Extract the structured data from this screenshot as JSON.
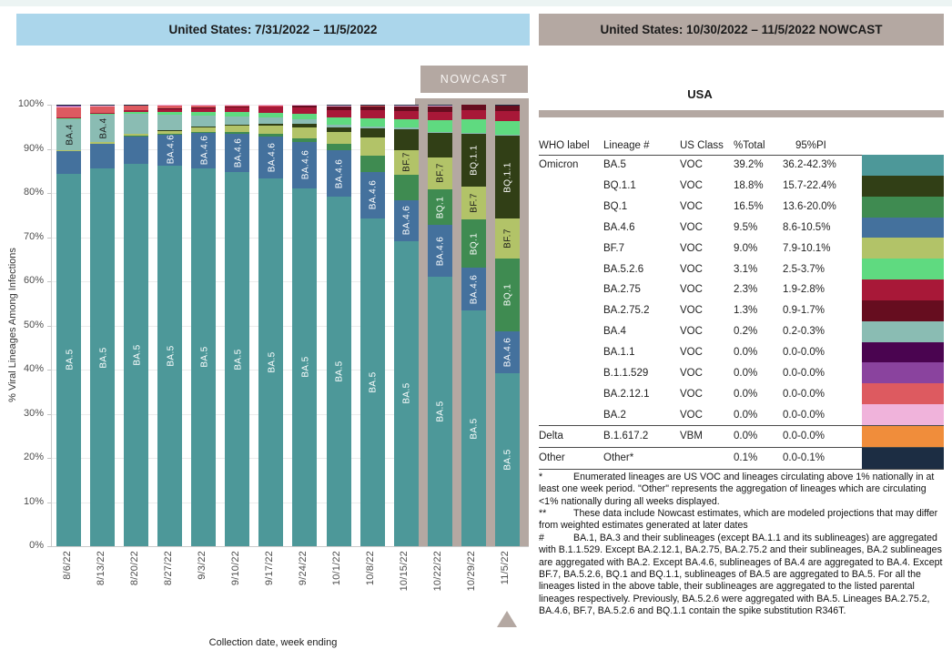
{
  "page": {
    "top_strip_color": "#ECF4F3",
    "accent_blue": "#ABD6EB",
    "accent_taupe": "#B4A8A2"
  },
  "left_panel": {
    "title": "United States: 7/31/2022 – 11/5/2022"
  },
  "right_panel": {
    "title": "United States: 10/30/2022 – 11/5/2022 NOWCAST",
    "table_title": "USA"
  },
  "chart_data": {
    "type": "bar",
    "stacked": true,
    "ylabel": "% Viral Lineages Among Infections",
    "xlabel": "Collection date, week ending",
    "ylim": [
      0,
      100
    ],
    "ytick_percents": [
      0,
      10,
      20,
      30,
      40,
      50,
      60,
      70,
      80,
      90,
      100
    ],
    "grid": true,
    "nowcast_label": "NOWCAST",
    "nowcast_weeks": [
      "10/22/22",
      "10/29/22",
      "11/5/22"
    ],
    "selected_week": "11/5/22",
    "categories": [
      "8/6/22",
      "8/13/22",
      "8/20/22",
      "8/27/22",
      "9/3/22",
      "9/10/22",
      "9/17/22",
      "9/24/22",
      "10/1/22",
      "10/8/22",
      "10/15/22",
      "10/22/22",
      "10/29/22",
      "11/5/22"
    ],
    "stack_order_bottom_to_top": [
      "BA.5",
      "BA.4.6",
      "BQ.1",
      "BF.7",
      "BQ.1.1",
      "BA.4",
      "BA.5.2.6",
      "BA.2.75",
      "BA.2.75.2",
      "BA.2.12.1",
      "BA.2",
      "B.1.1.529",
      "BA.1.1",
      "B.1.617.2",
      "Other"
    ],
    "series": [
      {
        "name": "BA.5",
        "color": "#4D9899",
        "label_color": "#ffffff",
        "label_min": 5,
        "values": [
          84.4,
          85.5,
          86.5,
          86.2,
          85.6,
          84.7,
          83.2,
          81.1,
          79.2,
          74.3,
          69.1,
          61.1,
          53.4,
          39.2
        ]
      },
      {
        "name": "BA.4.6",
        "color": "#44719D",
        "label_color": "#ffffff",
        "label_min": 7,
        "values": [
          5.0,
          5.6,
          6.3,
          7.2,
          8.0,
          8.8,
          9.6,
          10.4,
          10.4,
          10.5,
          9.3,
          11.6,
          9.6,
          9.5
        ]
      },
      {
        "name": "BQ.1",
        "color": "#3F8B51",
        "label_color": "#ffffff",
        "label_min": 8,
        "values": [
          0,
          0,
          0.1,
          0.1,
          0.2,
          0.3,
          0.5,
          0.8,
          1.6,
          3.6,
          5.8,
          8.2,
          11.0,
          16.5
        ]
      },
      {
        "name": "BF.7",
        "color": "#B2C368",
        "label_color": "#1a1a1a",
        "label_min": 5.4,
        "values": [
          0.3,
          0.4,
          0.5,
          0.7,
          1.0,
          1.4,
          1.9,
          2.5,
          2.6,
          4.1,
          5.5,
          7.2,
          7.5,
          9.0
        ]
      },
      {
        "name": "BQ.1.1",
        "color": "#313F16",
        "label_color": "#ffffff",
        "label_min": 11.5,
        "values": [
          0,
          0,
          0,
          0.1,
          0.2,
          0.3,
          0.5,
          0.8,
          1.0,
          2.1,
          4.8,
          5.5,
          12.0,
          18.8
        ]
      },
      {
        "name": "BA.4",
        "color": "#8ABCB3",
        "label_color": "#1a1a1a",
        "label_min": 5,
        "values": [
          7.1,
          6.2,
          4.6,
          3.5,
          2.6,
          1.9,
          1.4,
          1.0,
          0.7,
          0.5,
          0.4,
          0.3,
          0.2,
          0.2
        ]
      },
      {
        "name": "BA.5.2.6",
        "color": "#5FDA80",
        "label_color": "#1a1a1a",
        "label_min": 999,
        "values": [
          0.2,
          0.2,
          0.3,
          0.5,
          0.7,
          0.9,
          1.1,
          1.4,
          1.6,
          1.9,
          1.8,
          2.5,
          2.9,
          3.1
        ]
      },
      {
        "name": "BA.2.75",
        "color": "#A81838",
        "label_color": "#ffffff",
        "label_min": 999,
        "values": [
          0.1,
          0.2,
          0.4,
          0.7,
          1.0,
          1.2,
          1.3,
          1.4,
          1.6,
          1.7,
          1.9,
          2.0,
          2.1,
          2.3
        ]
      },
      {
        "name": "BA.2.75.2",
        "color": "#660D1F",
        "label_color": "#ffffff",
        "label_min": 999,
        "values": [
          0,
          0,
          0,
          0.1,
          0.1,
          0.1,
          0.2,
          0.4,
          0.8,
          0.9,
          1.0,
          1.2,
          1.3,
          1.3
        ]
      },
      {
        "name": "BA.2.12.1",
        "color": "#DD5A60",
        "label_color": "#1a1a1a",
        "label_min": 999,
        "values": [
          2.3,
          1.5,
          1.0,
          0.7,
          0.4,
          0.2,
          0.1,
          0.1,
          0.2,
          0.2,
          0.1,
          0.1,
          0,
          0
        ]
      },
      {
        "name": "BA.2",
        "color": "#F0B3DB",
        "label_color": "#1a1a1a",
        "label_min": 999,
        "values": [
          0.2,
          0.2,
          0.2,
          0.2,
          0.2,
          0.2,
          0.2,
          0.1,
          0.1,
          0.1,
          0.1,
          0.1,
          0,
          0
        ]
      },
      {
        "name": "B.1.1.529",
        "color": "#8A439E",
        "label_color": "#ffffff",
        "label_min": 999,
        "values": [
          0.1,
          0.1,
          0,
          0,
          0,
          0,
          0,
          0,
          0,
          0,
          0,
          0,
          0,
          0
        ]
      },
      {
        "name": "BA.1.1",
        "color": "#4A0450",
        "label_color": "#ffffff",
        "label_min": 999,
        "values": [
          0,
          0,
          0,
          0,
          0,
          0,
          0,
          0,
          0,
          0,
          0,
          0,
          0,
          0
        ]
      },
      {
        "name": "B.1.617.2",
        "color": "#F08D3B",
        "label_color": "#1a1a1a",
        "label_min": 999,
        "values": [
          0,
          0,
          0,
          0,
          0,
          0,
          0,
          0,
          0,
          0,
          0,
          0,
          0,
          0
        ]
      },
      {
        "name": "Other",
        "color": "#1C2D43",
        "label_color": "#ffffff",
        "label_min": 999,
        "values": [
          0.3,
          0.1,
          0.1,
          0,
          0,
          0,
          0,
          0,
          0.2,
          0.1,
          0.2,
          0.2,
          0,
          0.1
        ]
      }
    ]
  },
  "table": {
    "columns": [
      "WHO label",
      "Lineage #",
      "US Class",
      "%Total",
      "95%PI"
    ],
    "rows": [
      {
        "who": "Omicron",
        "lineage": "BA.5",
        "us_class": "VOC",
        "total": "39.2%",
        "pi": "36.2-42.3%",
        "color": "#4D9899",
        "sep": false
      },
      {
        "who": "",
        "lineage": "BQ.1.1",
        "us_class": "VOC",
        "total": "18.8%",
        "pi": "15.7-22.4%",
        "color": "#313F16",
        "sep": false
      },
      {
        "who": "",
        "lineage": "BQ.1",
        "us_class": "VOC",
        "total": "16.5%",
        "pi": "13.6-20.0%",
        "color": "#3F8B51",
        "sep": false
      },
      {
        "who": "",
        "lineage": "BA.4.6",
        "us_class": "VOC",
        "total": "9.5%",
        "pi": "8.6-10.5%",
        "color": "#44719D",
        "sep": false
      },
      {
        "who": "",
        "lineage": "BF.7",
        "us_class": "VOC",
        "total": "9.0%",
        "pi": "7.9-10.1%",
        "color": "#B2C368",
        "sep": false
      },
      {
        "who": "",
        "lineage": "BA.5.2.6",
        "us_class": "VOC",
        "total": "3.1%",
        "pi": "2.5-3.7%",
        "color": "#5FDA80",
        "sep": false
      },
      {
        "who": "",
        "lineage": "BA.2.75",
        "us_class": "VOC",
        "total": "2.3%",
        "pi": "1.9-2.8%",
        "color": "#A81838",
        "sep": false
      },
      {
        "who": "",
        "lineage": "BA.2.75.2",
        "us_class": "VOC",
        "total": "1.3%",
        "pi": "0.9-1.7%",
        "color": "#660D1F",
        "sep": false
      },
      {
        "who": "",
        "lineage": "BA.4",
        "us_class": "VOC",
        "total": "0.2%",
        "pi": "0.2-0.3%",
        "color": "#8ABCB3",
        "sep": false
      },
      {
        "who": "",
        "lineage": "BA.1.1",
        "us_class": "VOC",
        "total": "0.0%",
        "pi": "0.0-0.0%",
        "color": "#4A0450",
        "sep": false
      },
      {
        "who": "",
        "lineage": "B.1.1.529",
        "us_class": "VOC",
        "total": "0.0%",
        "pi": "0.0-0.0%",
        "color": "#8A439E",
        "sep": false
      },
      {
        "who": "",
        "lineage": "BA.2.12.1",
        "us_class": "VOC",
        "total": "0.0%",
        "pi": "0.0-0.0%",
        "color": "#DD5A60",
        "sep": false
      },
      {
        "who": "",
        "lineage": "BA.2",
        "us_class": "VOC",
        "total": "0.0%",
        "pi": "0.0-0.0%",
        "color": "#F0B3DB",
        "sep": false
      },
      {
        "who": "Delta",
        "lineage": "B.1.617.2",
        "us_class": "VBM",
        "total": "0.0%",
        "pi": "0.0-0.0%",
        "color": "#F08D3B",
        "sep": true
      },
      {
        "who": "Other",
        "lineage": "Other*",
        "us_class": "",
        "total": "0.1%",
        "pi": "0.0-0.1%",
        "color": "#1C2D43",
        "sep": true
      }
    ]
  },
  "footnotes": [
    {
      "marker": "*",
      "text": "Enumerated lineages are US VOC and lineages circulating above 1% nationally in at least one week period. \"Other\" represents the aggregation of lineages which are circulating <1% nationally during all weeks displayed."
    },
    {
      "marker": "**",
      "text": "These data include Nowcast estimates, which are modeled projections that may differ from weighted estimates generated at later dates"
    },
    {
      "marker": "#",
      "text": "BA.1, BA.3 and their sublineages (except BA.1.1 and its sublineages) are aggregated with B.1.1.529. Except BA.2.12.1, BA.2.75, BA.2.75.2 and their sublineages, BA.2 sublineages are aggregated with BA.2. Except BA.4.6, sublineages of BA.4 are aggregated to BA.4. Except BF.7, BA.5.2.6, BQ.1 and BQ.1.1, sublineages of BA.5 are aggregated to BA.5. For all the lineages listed in the above table, their sublineages are aggregated to the listed parental lineages respectively. Previously, BA.5.2.6 were aggregated with BA.5. Lineages BA.2.75.2, BA.4.6, BF.7, BA.5.2.6 and BQ.1.1 contain the spike substitution R346T."
    }
  ]
}
